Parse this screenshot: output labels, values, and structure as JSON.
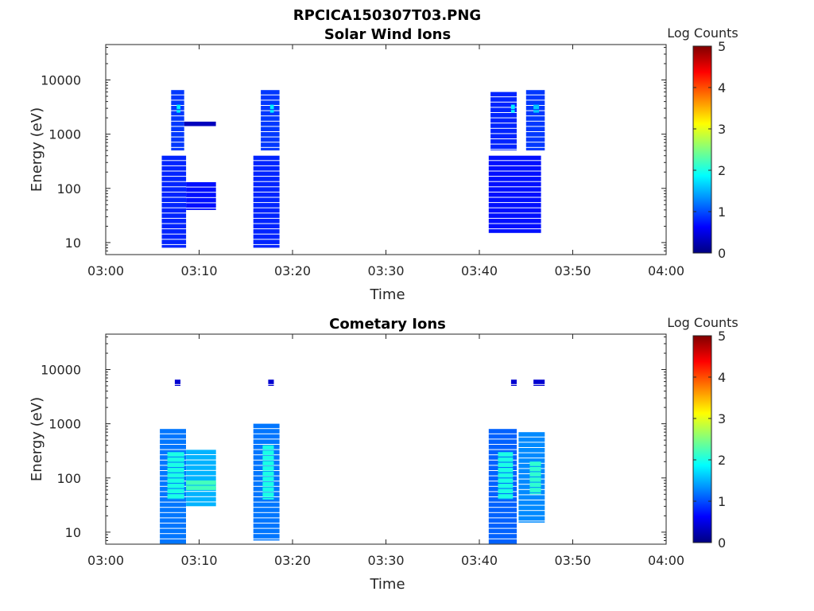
{
  "figure": {
    "title": "RPCICA150307T03.PNG"
  },
  "colorbar": {
    "colors": [
      "#000080",
      "#0000ff",
      "#0080ff",
      "#00ffff",
      "#80ff80",
      "#ffff00",
      "#ff8000",
      "#ff0000",
      "#800000"
    ]
  },
  "chart_data": [
    {
      "type": "heatmap",
      "title": "Solar Wind Ions",
      "xlabel": "Time",
      "ylabel": "Energy (eV)",
      "x_range": [
        "03:00",
        "04:00"
      ],
      "x_ticks": [
        "03:00",
        "03:10",
        "03:20",
        "03:30",
        "03:40",
        "03:50",
        "04:00"
      ],
      "y_scale": "log",
      "y_range": [
        6,
        45000
      ],
      "y_ticks": [
        {
          "value": 10,
          "label": "10"
        },
        {
          "value": 100,
          "label": "100"
        },
        {
          "value": 1000,
          "label": "1000"
        },
        {
          "value": 10000,
          "label": "10000"
        }
      ],
      "colorbar": {
        "label": "Log Counts",
        "range": [
          0,
          5
        ],
        "ticks": [
          "0",
          "1",
          "2",
          "3",
          "4",
          "5"
        ]
      },
      "blocks": [
        {
          "t": [
            6.0,
            8.6
          ],
          "e": [
            8,
            400
          ],
          "level": 0.8
        },
        {
          "t": [
            8.6,
            11.8
          ],
          "e": [
            40,
            130
          ],
          "level": 0.7
        },
        {
          "t": [
            7.0,
            8.4
          ],
          "e": [
            500,
            6500
          ],
          "level": 0.9
        },
        {
          "t": [
            7.6,
            8.0
          ],
          "e": [
            2500,
            3500
          ],
          "level": 1.8
        },
        {
          "t": [
            8.4,
            11.8
          ],
          "e": [
            1400,
            1700
          ],
          "level": 0.3
        },
        {
          "t": [
            15.8,
            18.6
          ],
          "e": [
            8,
            400
          ],
          "level": 0.8
        },
        {
          "t": [
            16.6,
            18.6
          ],
          "e": [
            500,
            6500
          ],
          "level": 0.9
        },
        {
          "t": [
            17.6,
            18.0
          ],
          "e": [
            2500,
            3500
          ],
          "level": 1.8
        },
        {
          "t": [
            41.0,
            46.6
          ],
          "e": [
            15,
            400
          ],
          "level": 0.7
        },
        {
          "t": [
            41.2,
            44.0
          ],
          "e": [
            500,
            6000
          ],
          "level": 0.8
        },
        {
          "t": [
            45.0,
            47.0
          ],
          "e": [
            500,
            6500
          ],
          "level": 0.9
        },
        {
          "t": [
            43.4,
            43.8
          ],
          "e": [
            2500,
            3500
          ],
          "level": 1.8
        },
        {
          "t": [
            45.8,
            46.4
          ],
          "e": [
            2500,
            3500
          ],
          "level": 1.6
        }
      ]
    },
    {
      "type": "heatmap",
      "title": "Cometary Ions",
      "xlabel": "Time",
      "ylabel": "Energy (eV)",
      "x_range": [
        "03:00",
        "04:00"
      ],
      "x_ticks": [
        "03:00",
        "03:10",
        "03:20",
        "03:30",
        "03:40",
        "03:50",
        "04:00"
      ],
      "y_scale": "log",
      "y_range": [
        6,
        45000
      ],
      "y_ticks": [
        {
          "value": 10,
          "label": "10"
        },
        {
          "value": 100,
          "label": "100"
        },
        {
          "value": 1000,
          "label": "1000"
        },
        {
          "value": 10000,
          "label": "10000"
        }
      ],
      "colorbar": {
        "label": "Log Counts",
        "range": [
          0,
          5
        ],
        "ticks": [
          "0",
          "1",
          "2",
          "3",
          "4",
          "5"
        ]
      },
      "blocks": [
        {
          "t": [
            5.8,
            8.6
          ],
          "e": [
            6,
            800
          ],
          "level": 1.2
        },
        {
          "t": [
            6.6,
            8.4
          ],
          "e": [
            40,
            300
          ],
          "level": 2.0
        },
        {
          "t": [
            8.6,
            11.8
          ],
          "e": [
            30,
            330
          ],
          "level": 1.5
        },
        {
          "t": [
            8.6,
            11.8
          ],
          "e": [
            60,
            90
          ],
          "level": 2.2
        },
        {
          "t": [
            7.4,
            8.0
          ],
          "e": [
            5000,
            6500
          ],
          "level": 0.4
        },
        {
          "t": [
            15.8,
            18.6
          ],
          "e": [
            7,
            1000
          ],
          "level": 1.2
        },
        {
          "t": [
            16.8,
            18.0
          ],
          "e": [
            40,
            400
          ],
          "level": 2.0
        },
        {
          "t": [
            17.4,
            18.0
          ],
          "e": [
            5000,
            6500
          ],
          "level": 0.4
        },
        {
          "t": [
            41.0,
            44.0
          ],
          "e": [
            6,
            800
          ],
          "level": 1.1
        },
        {
          "t": [
            42.0,
            43.6
          ],
          "e": [
            40,
            300
          ],
          "level": 2.0
        },
        {
          "t": [
            44.2,
            47.0
          ],
          "e": [
            15,
            700
          ],
          "level": 1.3
        },
        {
          "t": [
            45.4,
            46.6
          ],
          "e": [
            50,
            200
          ],
          "level": 2.1
        },
        {
          "t": [
            43.4,
            44.0
          ],
          "e": [
            5000,
            6500
          ],
          "level": 0.4
        },
        {
          "t": [
            45.8,
            47.0
          ],
          "e": [
            5000,
            6500
          ],
          "level": 0.4
        }
      ]
    }
  ]
}
